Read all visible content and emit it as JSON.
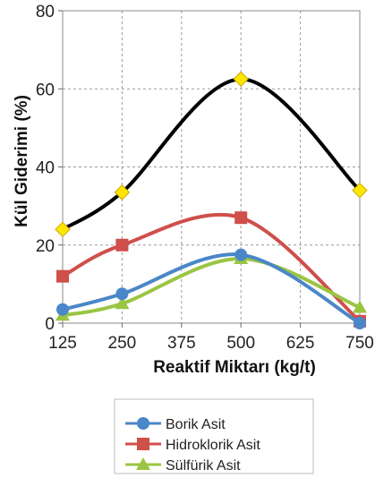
{
  "chart_data": {
    "type": "line",
    "x": [
      125,
      250,
      500,
      750
    ],
    "xlabel": "Reaktif  Miktarı (kg/t)",
    "ylabel": "Kül Giderimi (%)",
    "xlim": [
      125,
      750
    ],
    "ylim": [
      0,
      80
    ],
    "x_ticks": [
      "125",
      "250",
      "375",
      "500",
      "625",
      "750"
    ],
    "y_ticks": [
      "0",
      "20",
      "40",
      "60",
      "80"
    ],
    "grid": true,
    "legend_position": "bottom",
    "series": [
      {
        "name": "",
        "color": "#000000",
        "marker": "diamond",
        "marker_color": "#ffe600",
        "values": [
          24,
          33.5,
          62.5,
          34
        ]
      },
      {
        "name": "Hidroklorik Asit",
        "color": "#cf4f4a",
        "marker": "square",
        "marker_color": "#cf4f4a",
        "values": [
          12,
          20,
          27,
          0.5
        ]
      },
      {
        "name": "Sülfürik Asit",
        "color": "#9ac542",
        "marker": "triangle",
        "marker_color": "#9ac542",
        "values": [
          2,
          5,
          16.5,
          4
        ]
      },
      {
        "name": "Borik Asit",
        "color": "#4a87c8",
        "marker": "circle",
        "marker_color": "#4a87c8",
        "values": [
          3.5,
          7.5,
          17.5,
          0
        ]
      }
    ],
    "legend": [
      "Borik Asit",
      "Hidroklorik Asit",
      "Sülfürik Asit"
    ]
  }
}
